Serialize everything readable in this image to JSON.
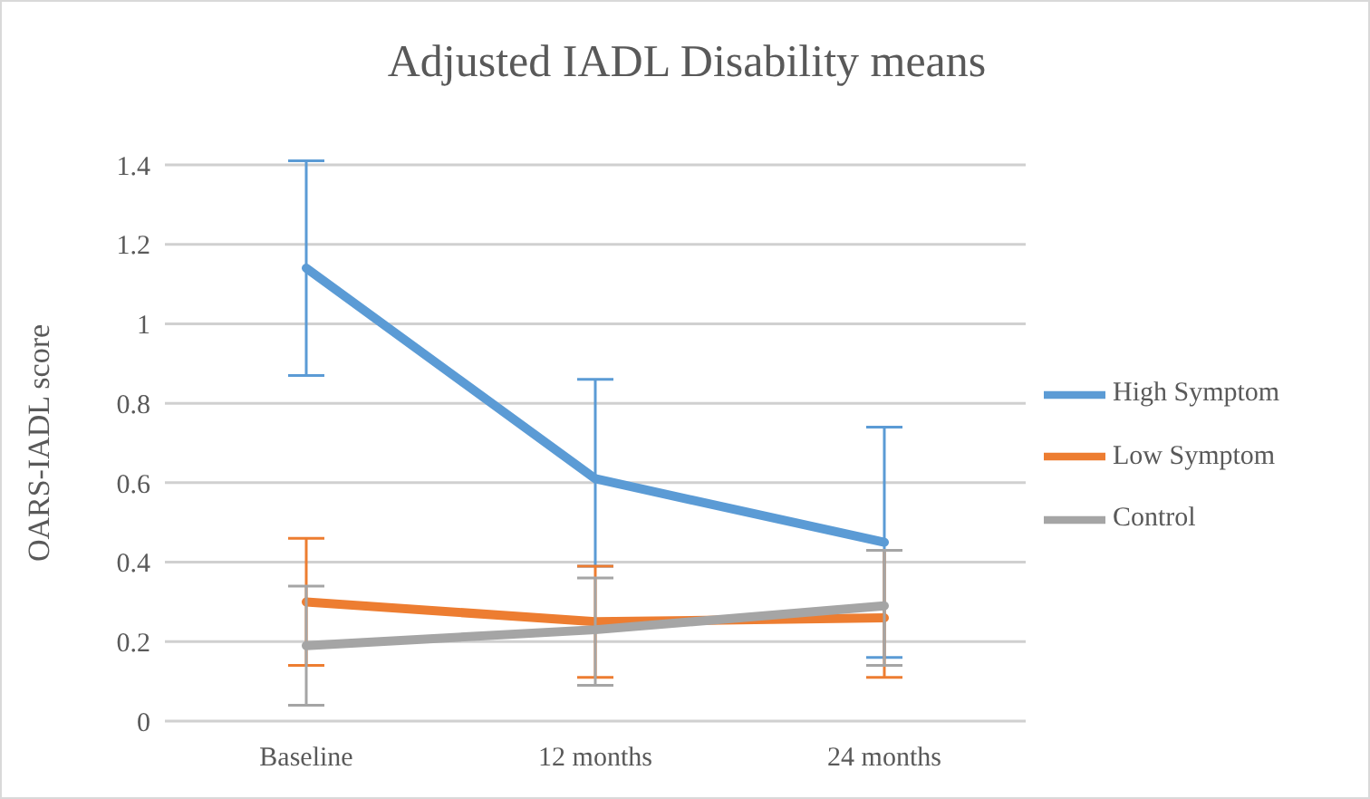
{
  "chart_data": {
    "type": "line",
    "title": "Adjusted IADL Disability means",
    "ylabel": "OARS-IADL score",
    "categories": [
      "Baseline",
      "12 months",
      "24 months"
    ],
    "series": [
      {
        "name": "High Symptom",
        "color": "#5b9bd5",
        "values": [
          1.14,
          0.61,
          0.45
        ],
        "errors": [
          [
            0.87,
            1.41
          ],
          [
            0.39,
            0.86
          ],
          [
            0.16,
            0.74
          ]
        ]
      },
      {
        "name": "Low Symptom",
        "color": "#ed7d31",
        "values": [
          0.3,
          0.25,
          0.26
        ],
        "errors": [
          [
            0.14,
            0.46
          ],
          [
            0.11,
            0.39
          ],
          [
            0.11,
            0.43
          ]
        ]
      },
      {
        "name": "Control",
        "color": "#a5a5a5",
        "values": [
          0.19,
          0.23,
          0.29
        ],
        "errors": [
          [
            0.04,
            0.34
          ],
          [
            0.09,
            0.36
          ],
          [
            0.14,
            0.43
          ]
        ]
      }
    ],
    "ylim": [
      0,
      1.4
    ],
    "yticks": [
      0,
      0.2,
      0.4,
      0.6,
      0.8,
      1,
      1.2,
      1.4
    ],
    "grid": "y",
    "legend": "right",
    "line_style": "solid"
  }
}
